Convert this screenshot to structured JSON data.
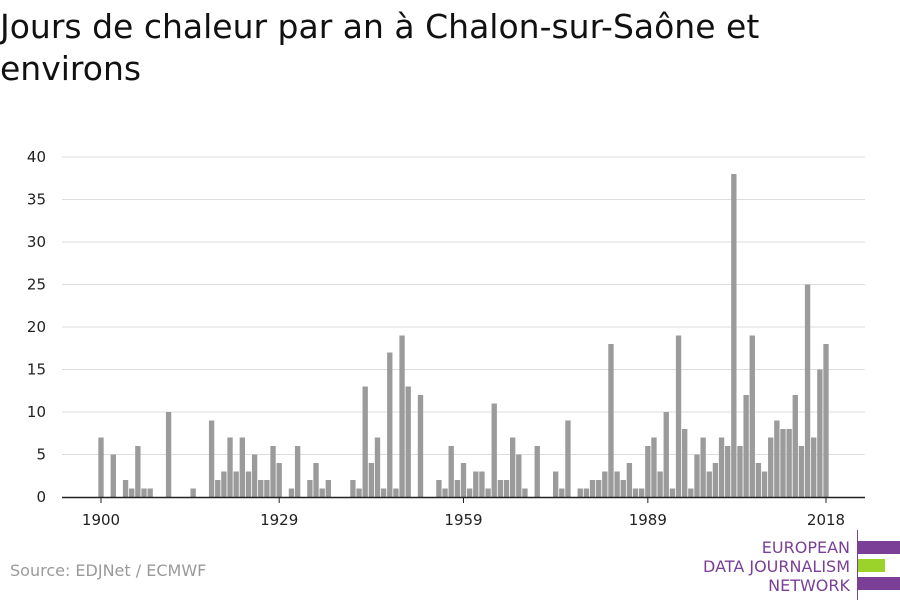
{
  "title": "Jours de chaleur par an à Chalon-sur-Saône et environs",
  "source": "Source: EDJNet / ECMWF",
  "logo": {
    "line1": "EUROPEAN",
    "line2": "DATA JOURNALISM",
    "line3": "NETWORK",
    "purple": "#7b3f98",
    "green": "#9bd32a"
  },
  "colors": {
    "bar": "#9b9b9b",
    "grid": "#dddddd",
    "axis": "#222222"
  },
  "chart_data": {
    "type": "bar",
    "title": "Jours de chaleur par an à Chalon-sur-Saône et environs",
    "xlabel": "",
    "ylabel": "",
    "xlim": [
      1900,
      2018
    ],
    "ylim": [
      0,
      40
    ],
    "yticks": [
      0,
      5,
      10,
      15,
      20,
      25,
      30,
      35,
      40
    ],
    "xticks": [
      1900,
      1929,
      1959,
      1989,
      2018
    ],
    "grid": true,
    "years": [
      1900,
      1901,
      1902,
      1903,
      1904,
      1905,
      1906,
      1907,
      1908,
      1909,
      1910,
      1911,
      1912,
      1913,
      1914,
      1915,
      1916,
      1917,
      1918,
      1919,
      1920,
      1921,
      1922,
      1923,
      1924,
      1925,
      1926,
      1927,
      1928,
      1929,
      1930,
      1931,
      1932,
      1933,
      1934,
      1935,
      1936,
      1937,
      1938,
      1939,
      1940,
      1941,
      1942,
      1943,
      1944,
      1945,
      1946,
      1947,
      1948,
      1949,
      1950,
      1951,
      1952,
      1953,
      1954,
      1955,
      1956,
      1957,
      1958,
      1959,
      1960,
      1961,
      1962,
      1963,
      1964,
      1965,
      1966,
      1967,
      1968,
      1969,
      1970,
      1971,
      1972,
      1973,
      1974,
      1975,
      1976,
      1977,
      1978,
      1979,
      1980,
      1981,
      1982,
      1983,
      1984,
      1985,
      1986,
      1987,
      1988,
      1989,
      1990,
      1991,
      1992,
      1993,
      1994,
      1995,
      1996,
      1997,
      1998,
      1999,
      2000,
      2001,
      2002,
      2003,
      2004,
      2005,
      2006,
      2007,
      2008,
      2009,
      2010,
      2011,
      2012,
      2013,
      2014,
      2015,
      2016,
      2017,
      2018
    ],
    "values": [
      7,
      0,
      5,
      0,
      2,
      1,
      6,
      1,
      1,
      0,
      0,
      10,
      0,
      0,
      0,
      1,
      0,
      0,
      9,
      2,
      3,
      7,
      3,
      7,
      3,
      5,
      2,
      2,
      6,
      4,
      0,
      1,
      6,
      0,
      2,
      4,
      1,
      2,
      0,
      0,
      0,
      2,
      1,
      13,
      4,
      7,
      1,
      17,
      1,
      19,
      13,
      0,
      12,
      0,
      0,
      2,
      1,
      6,
      2,
      4,
      1,
      3,
      3,
      1,
      11,
      2,
      2,
      7,
      5,
      1,
      0,
      6,
      0,
      0,
      3,
      1,
      9,
      0,
      1,
      1,
      2,
      2,
      3,
      18,
      3,
      2,
      4,
      1,
      1,
      6,
      7,
      3,
      10,
      1,
      19,
      8,
      1,
      5,
      7,
      3,
      4,
      7,
      6,
      38,
      6,
      12,
      19,
      4,
      3,
      7,
      9,
      8,
      8,
      12,
      6,
      25,
      7,
      15,
      18
    ]
  }
}
